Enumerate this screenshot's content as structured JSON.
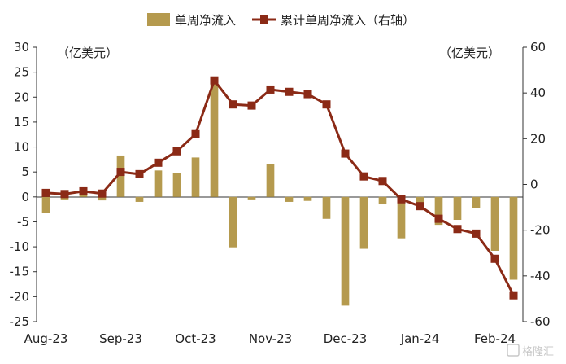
{
  "chart_data": {
    "type": "bar",
    "legend": {
      "bar_label": "单周净流入",
      "line_label": "累计单周净流入（右轴）",
      "placement": "top"
    },
    "left_unit": "（亿美元）",
    "right_unit": "（亿美元）",
    "left_axis": {
      "ylim": [
        -25,
        30
      ],
      "ticks": [
        30,
        25,
        20,
        15,
        10,
        5,
        0,
        -5,
        -10,
        -15,
        -20,
        -25
      ]
    },
    "right_axis": {
      "ylim": [
        -60,
        60
      ],
      "ticks": [
        60,
        40,
        20,
        0,
        -20,
        -40,
        -60
      ]
    },
    "x_labels": [
      "Aug-23",
      "Sep-23",
      "Oct-23",
      "Nov-23",
      "Dec-23",
      "Jan-24",
      "Feb-24"
    ],
    "colors": {
      "bar": "#b59a4e",
      "line": "#8b2a16"
    },
    "series": [
      {
        "name": "单周净流入",
        "axis": "left",
        "values": [
          -3.2,
          -0.5,
          0.3,
          -0.7,
          8.3,
          -1.0,
          5.3,
          4.8,
          7.9,
          23.5,
          -10.1,
          -0.5,
          6.6,
          -1.0,
          -0.8,
          -4.4,
          -21.8,
          -10.4,
          -1.5,
          -8.3,
          -1.1,
          -5.6,
          -4.6,
          -2.3,
          -10.8,
          -16.6
        ]
      },
      {
        "name": "累计单周净流入（右轴）",
        "axis": "right",
        "values": [
          -3.7,
          -4.2,
          -3.0,
          -4.0,
          5.5,
          4.5,
          9.5,
          14.5,
          22.0,
          45.5,
          35.0,
          34.5,
          41.5,
          40.5,
          39.5,
          35.0,
          13.5,
          3.5,
          1.5,
          -6.5,
          -9.5,
          -15.0,
          -19.5,
          -21.5,
          -32.5,
          -48.5
        ]
      }
    ]
  },
  "watermark": "格隆汇"
}
